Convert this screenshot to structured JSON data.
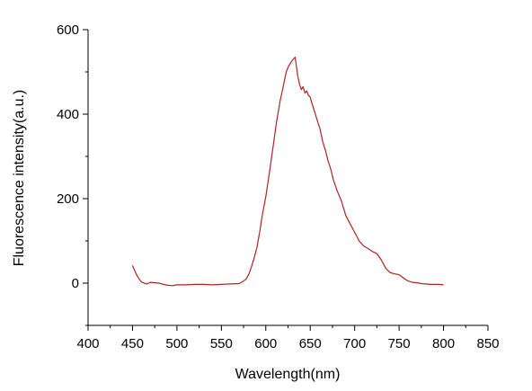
{
  "chart_data": {
    "type": "line",
    "xlabel": "Wavelength(nm)",
    "ylabel": "Fluorescence intensity(a.u.)",
    "xlim": [
      400,
      850
    ],
    "ylim": [
      -100,
      600
    ],
    "xticks": [
      400,
      450,
      500,
      550,
      600,
      650,
      700,
      750,
      800,
      850
    ],
    "yticks": [
      0,
      200,
      400,
      600
    ],
    "grid": false,
    "line_color": "#b22222",
    "series": [
      {
        "x": [
          450,
          452,
          455,
          458,
          460,
          463,
          466,
          470,
          475,
          480,
          485,
          490,
          495,
          500,
          510,
          520,
          530,
          540,
          550,
          560,
          570,
          575,
          578,
          581,
          584,
          587,
          590,
          593,
          596,
          600,
          604,
          608,
          612,
          616,
          620,
          623,
          626,
          629,
          631,
          633,
          634,
          636,
          638,
          640,
          642,
          644,
          646,
          648,
          650,
          652,
          655,
          658,
          661,
          664,
          667,
          670,
          673,
          676,
          680,
          685,
          690,
          695,
          700,
          705,
          710,
          715,
          720,
          725,
          730,
          735,
          740,
          745,
          750,
          755,
          760,
          765,
          770,
          775,
          780,
          785,
          790,
          795,
          800
        ],
        "y": [
          42,
          32,
          18,
          8,
          3,
          0,
          -2,
          2,
          1,
          0,
          -3,
          -5,
          -6,
          -4,
          -4,
          -3,
          -3,
          -4,
          -3,
          -2,
          -1,
          5,
          10,
          22,
          40,
          60,
          85,
          120,
          160,
          205,
          260,
          320,
          380,
          430,
          470,
          500,
          515,
          525,
          530,
          535,
          520,
          490,
          470,
          458,
          465,
          450,
          455,
          445,
          440,
          425,
          405,
          385,
          365,
          335,
          315,
          290,
          270,
          245,
          220,
          195,
          160,
          140,
          120,
          100,
          88,
          82,
          75,
          70,
          55,
          35,
          25,
          22,
          20,
          12,
          5,
          2,
          1,
          -1,
          -2,
          -3,
          -3,
          -3,
          -4
        ]
      }
    ]
  }
}
